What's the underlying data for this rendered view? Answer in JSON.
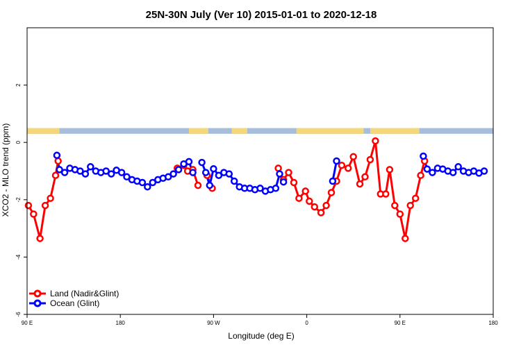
{
  "chart_data": {
    "type": "line",
    "title": "25N-30N July (Ver 10)   2015-01-01 to 2020-12-18",
    "xlabel": "Longitude (deg E)",
    "ylabel": "XCO2 - MLO trend (ppm)",
    "xlim": [
      90,
      450
    ],
    "ylim": [
      -6,
      4
    ],
    "x_ticks": [
      90,
      162,
      234,
      306,
      378,
      450
    ],
    "x_tick_labels": [
      "90 E",
      "180",
      "90 W",
      "0",
      "90 E",
      "180"
    ],
    "y_ticks": [
      -6,
      -4,
      -2,
      0,
      2
    ],
    "y_tick_labels": [
      "-6",
      "-4",
      "-2",
      "0",
      "2"
    ],
    "grid": false,
    "legend_position": "bottom-left",
    "land_mask_band": {
      "y_range": [
        0.3,
        0.5
      ],
      "land_color": "#f5d77a",
      "ocean_color": "#a6bddb",
      "land_segments": [
        [
          90,
          115
        ],
        [
          215,
          230
        ],
        [
          248,
          260
        ],
        [
          298,
          350
        ],
        [
          355,
          393
        ]
      ]
    },
    "series": [
      {
        "name": "Land (Nadir&Glint)",
        "color": "#ff0000",
        "points": [
          [
            91,
            -2.2
          ],
          [
            95,
            -2.5
          ],
          [
            100,
            -3.35
          ],
          [
            104,
            -2.2
          ],
          [
            108,
            -1.95
          ],
          [
            112,
            -1.15
          ],
          [
            114,
            -0.65
          ],
          [
            206,
            -0.9
          ],
          [
            211,
            -0.8
          ],
          [
            214,
            -1.0
          ],
          [
            218,
            -0.95
          ],
          [
            222,
            -1.5
          ],
          [
            229,
            -1.15
          ],
          [
            233,
            -1.6
          ],
          [
            284,
            -0.9
          ],
          [
            288,
            -1.3
          ],
          [
            292,
            -1.05
          ],
          [
            296,
            -1.4
          ],
          [
            300,
            -1.95
          ],
          [
            305,
            -1.7
          ],
          [
            308,
            -2.05
          ],
          [
            312,
            -2.25
          ],
          [
            317,
            -2.45
          ],
          [
            321,
            -2.2
          ],
          [
            325,
            -1.75
          ],
          [
            329,
            -1.35
          ],
          [
            333,
            -0.8
          ],
          [
            338,
            -0.9
          ],
          [
            342,
            -0.5
          ],
          [
            347,
            -1.45
          ],
          [
            351,
            -1.2
          ],
          [
            355,
            -0.6
          ],
          [
            359,
            0.05
          ],
          [
            363,
            -1.8
          ],
          [
            367,
            -1.8
          ],
          [
            370,
            -0.95
          ],
          [
            374,
            -2.2
          ],
          [
            378,
            -2.5
          ],
          [
            382,
            -3.35
          ],
          [
            386,
            -2.2
          ],
          [
            390,
            -1.95
          ],
          [
            394,
            -1.15
          ],
          [
            397,
            -0.65
          ]
        ]
      },
      {
        "name": "Ocean (Glint)",
        "color": "#0000ff",
        "points": [
          [
            113,
            -0.45
          ],
          [
            115,
            -0.95
          ],
          [
            119,
            -1.05
          ],
          [
            123,
            -0.9
          ],
          [
            127,
            -0.95
          ],
          [
            131,
            -1.0
          ],
          [
            135,
            -1.1
          ],
          [
            139,
            -0.85
          ],
          [
            143,
            -1.0
          ],
          [
            147,
            -1.05
          ],
          [
            151,
            -1.0
          ],
          [
            155,
            -1.1
          ],
          [
            159,
            -0.97
          ],
          [
            163,
            -1.05
          ],
          [
            167,
            -1.2
          ],
          [
            171,
            -1.3
          ],
          [
            175,
            -1.35
          ],
          [
            179,
            -1.4
          ],
          [
            183,
            -1.55
          ],
          [
            187,
            -1.4
          ],
          [
            191,
            -1.3
          ],
          [
            195,
            -1.25
          ],
          [
            199,
            -1.2
          ],
          [
            203,
            -1.1
          ],
          [
            207,
            -0.95
          ],
          [
            211,
            -0.75
          ],
          [
            215,
            -0.67
          ],
          [
            218,
            -1.05
          ],
          [
            225,
            -0.7
          ],
          [
            228,
            -1.05
          ],
          [
            231,
            -1.5
          ],
          [
            234,
            -0.92
          ],
          [
            238,
            -1.15
          ],
          [
            242,
            -1.05
          ],
          [
            246,
            -1.1
          ],
          [
            250,
            -1.35
          ],
          [
            254,
            -1.55
          ],
          [
            258,
            -1.6
          ],
          [
            262,
            -1.6
          ],
          [
            266,
            -1.65
          ],
          [
            270,
            -1.6
          ],
          [
            274,
            -1.7
          ],
          [
            278,
            -1.65
          ],
          [
            282,
            -1.6
          ],
          [
            285,
            -1.1
          ],
          [
            288,
            -1.38
          ],
          [
            326,
            -1.35
          ],
          [
            329,
            -0.65
          ],
          [
            396,
            -0.48
          ],
          [
            399,
            -0.93
          ],
          [
            403,
            -1.05
          ],
          [
            407,
            -0.9
          ],
          [
            411,
            -0.93
          ],
          [
            415,
            -1.0
          ],
          [
            419,
            -1.05
          ],
          [
            423,
            -0.85
          ],
          [
            427,
            -1.0
          ],
          [
            431,
            -1.05
          ],
          [
            435,
            -1.0
          ],
          [
            439,
            -1.07
          ],
          [
            443,
            -1.0
          ]
        ]
      }
    ]
  }
}
